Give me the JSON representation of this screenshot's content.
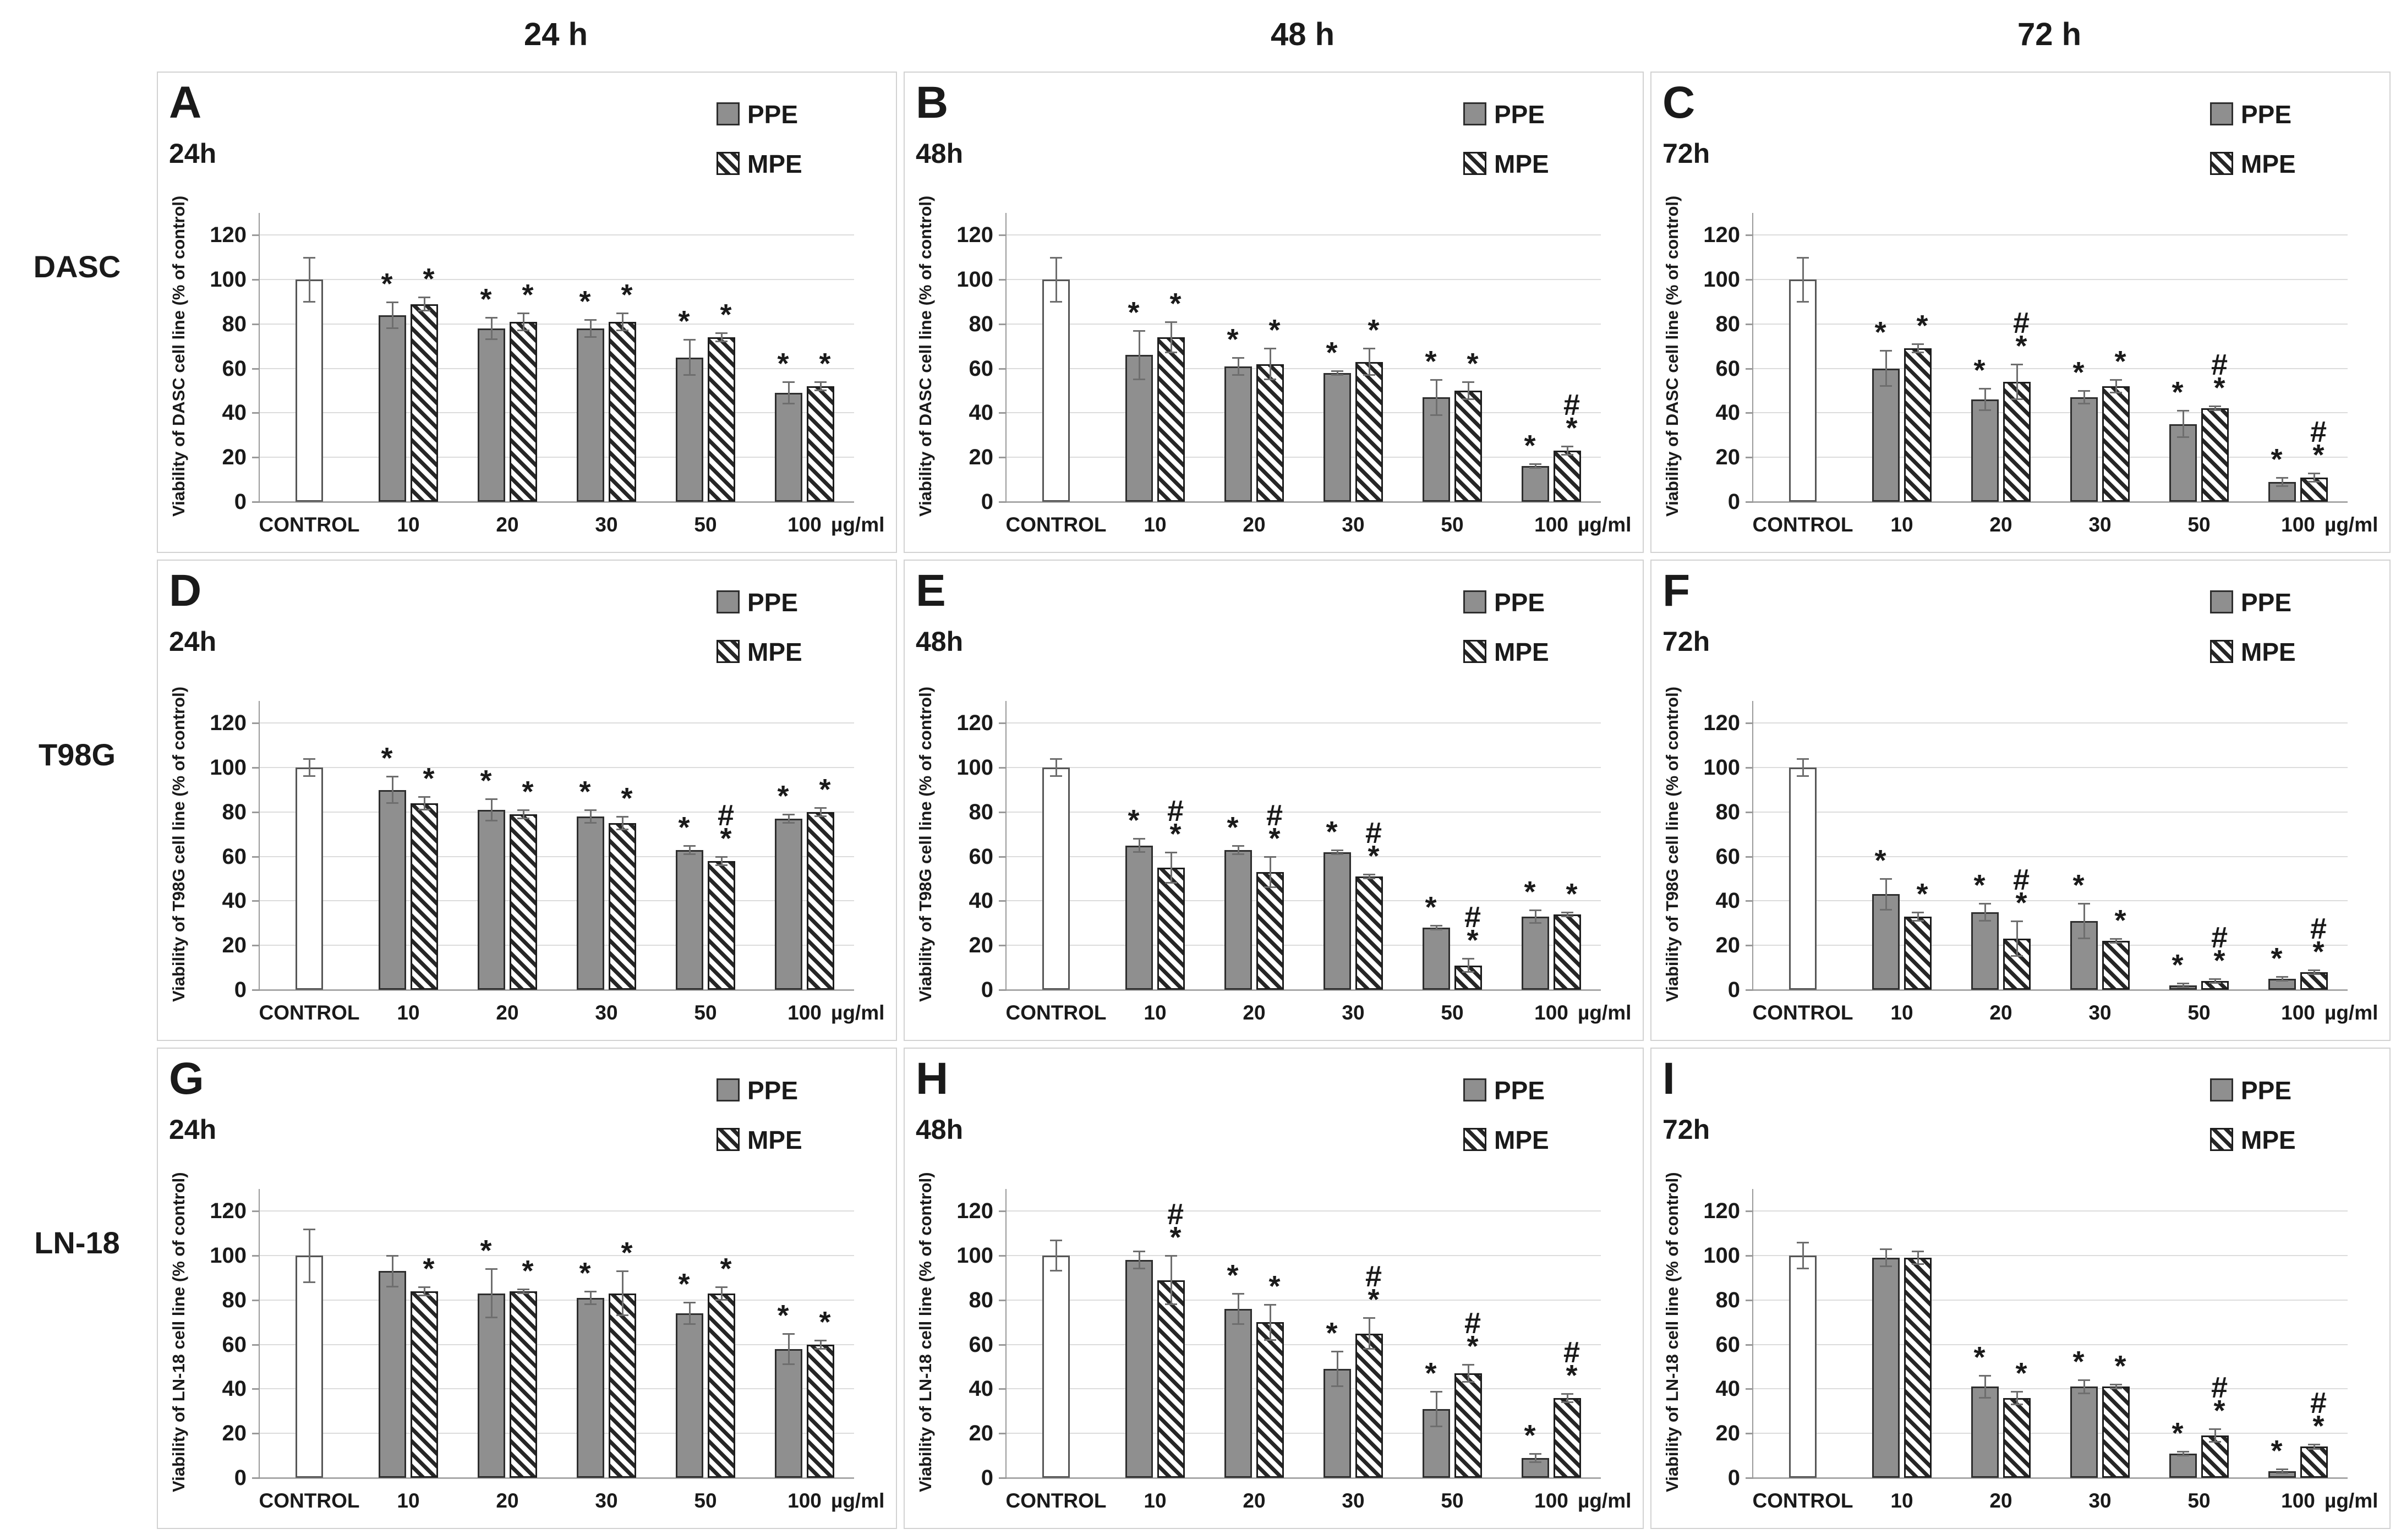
{
  "headers": {
    "columns": [
      "24 h",
      "48 h",
      "72 h"
    ],
    "rows": [
      "DASC",
      "T98G",
      "LN-18"
    ]
  },
  "colors": {
    "ppe_fill": "#8f8f8f",
    "ppe_border": "#2e2e2e",
    "mpe_stripe": "#262626",
    "control_fill": "#ffffff",
    "grid": "#dcdcdc",
    "text": "#1a1a1a"
  },
  "chart_data": {
    "type": "bar",
    "categories": [
      "CONTROL",
      "10",
      "20",
      "30",
      "50",
      "100"
    ],
    "doses": [
      "10",
      "20",
      "30",
      "50",
      "100"
    ],
    "control_label": "CONTROL",
    "unit": "µg/ml",
    "yticks": [
      0,
      20,
      40,
      60,
      80,
      100,
      120
    ],
    "ylim": [
      0,
      130
    ],
    "legend": [
      "PPE",
      "MPE"
    ],
    "grid": true,
    "legend_position": "top-right",
    "panels": [
      {
        "letter": "A",
        "time": "24h",
        "cell_line": "DASC",
        "ylabel": "Viability of DASC cell line (% of control)",
        "control": {
          "value": 100,
          "err": 10
        },
        "series": [
          {
            "name": "PPE",
            "values": [
              84,
              78,
              78,
              65,
              49
            ],
            "errors": [
              6,
              5,
              4,
              8,
              5
            ],
            "markers": [
              "*",
              "*",
              "*",
              "*",
              "*"
            ]
          },
          {
            "name": "MPE",
            "values": [
              89,
              81,
              81,
              74,
              52
            ],
            "errors": [
              3,
              4,
              4,
              2,
              2
            ],
            "markers": [
              "*",
              "*",
              "*",
              "*",
              "*"
            ]
          }
        ]
      },
      {
        "letter": "B",
        "time": "48h",
        "cell_line": "DASC",
        "ylabel": "Viability of DASC cell line (% of control)",
        "control": {
          "value": 100,
          "err": 10
        },
        "series": [
          {
            "name": "PPE",
            "values": [
              66,
              61,
              58,
              47,
              16
            ],
            "errors": [
              11,
              4,
              1,
              8,
              1
            ],
            "markers": [
              "*",
              "*",
              "*",
              "*",
              "*"
            ]
          },
          {
            "name": "MPE",
            "values": [
              74,
              62,
              63,
              50,
              23
            ],
            "errors": [
              7,
              7,
              6,
              4,
              2
            ],
            "markers": [
              "*",
              "*",
              "*",
              "*",
              "#*"
            ]
          }
        ]
      },
      {
        "letter": "C",
        "time": "72h",
        "cell_line": "DASC",
        "ylabel": "Viability of DASC cell line (% of control)",
        "control": {
          "value": 100,
          "err": 10
        },
        "series": [
          {
            "name": "PPE",
            "values": [
              60,
              46,
              47,
              35,
              9
            ],
            "errors": [
              8,
              5,
              3,
              6,
              2
            ],
            "markers": [
              "*",
              "*",
              "*",
              "*",
              "*"
            ]
          },
          {
            "name": "MPE",
            "values": [
              69,
              54,
              52,
              42,
              11
            ],
            "errors": [
              2,
              8,
              3,
              1,
              2
            ],
            "markers": [
              "*",
              "#*",
              "*",
              "#*",
              "#*"
            ]
          }
        ]
      },
      {
        "letter": "D",
        "time": "24h",
        "cell_line": "T98G",
        "ylabel": "Viability of T98G cell line (% of control)",
        "control": {
          "value": 100,
          "err": 4
        },
        "series": [
          {
            "name": "PPE",
            "values": [
              90,
              81,
              78,
              63,
              77
            ],
            "errors": [
              6,
              5,
              3,
              2,
              2
            ],
            "markers": [
              "*",
              "*",
              "*",
              "*",
              "*"
            ]
          },
          {
            "name": "MPE",
            "values": [
              84,
              79,
              75,
              58,
              80
            ],
            "errors": [
              3,
              2,
              3,
              2,
              2
            ],
            "markers": [
              "*",
              "*",
              "*",
              "#*",
              "*"
            ]
          }
        ]
      },
      {
        "letter": "E",
        "time": "48h",
        "cell_line": "T98G",
        "ylabel": "Viability of T98G cell line (% of control)",
        "control": {
          "value": 100,
          "err": 4
        },
        "series": [
          {
            "name": "PPE",
            "values": [
              65,
              63,
              62,
              28,
              33
            ],
            "errors": [
              3,
              2,
              1,
              1,
              3
            ],
            "markers": [
              "*",
              "*",
              "*",
              "*",
              "*"
            ]
          },
          {
            "name": "MPE",
            "values": [
              55,
              53,
              51,
              11,
              34
            ],
            "errors": [
              7,
              7,
              1,
              3,
              1
            ],
            "markers": [
              "#*",
              "#*",
              "#*",
              "#*",
              "*"
            ]
          }
        ]
      },
      {
        "letter": "F",
        "time": "72h",
        "cell_line": "T98G",
        "ylabel": "Viability of T98G cell line (% of control)",
        "control": {
          "value": 100,
          "err": 4
        },
        "series": [
          {
            "name": "PPE",
            "values": [
              43,
              35,
              31,
              2,
              5
            ],
            "errors": [
              7,
              4,
              8,
              1,
              1
            ],
            "markers": [
              "*",
              "*",
              "*",
              "*",
              "*"
            ]
          },
          {
            "name": "MPE",
            "values": [
              33,
              23,
              22,
              4,
              8
            ],
            "errors": [
              2,
              8,
              1,
              1,
              1
            ],
            "markers": [
              "*",
              "#*",
              "*",
              "#*",
              "#*"
            ]
          }
        ]
      },
      {
        "letter": "G",
        "time": "24h",
        "cell_line": "LN-18",
        "ylabel": "Viability of LN-18 cell line (% of control)",
        "control": {
          "value": 100,
          "err": 12
        },
        "series": [
          {
            "name": "PPE",
            "values": [
              93,
              83,
              81,
              74,
              58
            ],
            "errors": [
              7,
              11,
              3,
              5,
              7
            ],
            "markers": [
              "",
              "*",
              "*",
              "*",
              "*"
            ]
          },
          {
            "name": "MPE",
            "values": [
              84,
              84,
              83,
              83,
              60
            ],
            "errors": [
              2,
              1,
              10,
              3,
              2
            ],
            "markers": [
              "*",
              "*",
              "*",
              "*",
              "*"
            ]
          }
        ]
      },
      {
        "letter": "H",
        "time": "48h",
        "cell_line": "LN-18",
        "ylabel": "Viability of LN-18 cell line (% of control)",
        "control": {
          "value": 100,
          "err": 7
        },
        "series": [
          {
            "name": "PPE",
            "values": [
              98,
              76,
              49,
              31,
              9
            ],
            "errors": [
              4,
              7,
              8,
              8,
              2
            ],
            "markers": [
              "",
              "*",
              "*",
              "*",
              "*"
            ]
          },
          {
            "name": "MPE",
            "values": [
              89,
              70,
              65,
              47,
              36
            ],
            "errors": [
              11,
              8,
              7,
              4,
              2
            ],
            "markers": [
              "#*",
              "*",
              "#*",
              "#*",
              "#*"
            ]
          }
        ]
      },
      {
        "letter": "I",
        "time": "72h",
        "cell_line": "LN-18",
        "ylabel": "Viability of LN-18 cell line (% of control)",
        "control": {
          "value": 100,
          "err": 6
        },
        "series": [
          {
            "name": "PPE",
            "values": [
              99,
              41,
              41,
              11,
              3
            ],
            "errors": [
              4,
              5,
              3,
              1,
              1
            ],
            "markers": [
              "",
              "*",
              "*",
              "*",
              "*"
            ]
          },
          {
            "name": "MPE",
            "values": [
              99,
              36,
              41,
              19,
              14
            ],
            "errors": [
              3,
              3,
              1,
              3,
              1
            ],
            "markers": [
              "",
              "*",
              "*",
              "#*",
              "#*"
            ]
          }
        ]
      }
    ]
  }
}
